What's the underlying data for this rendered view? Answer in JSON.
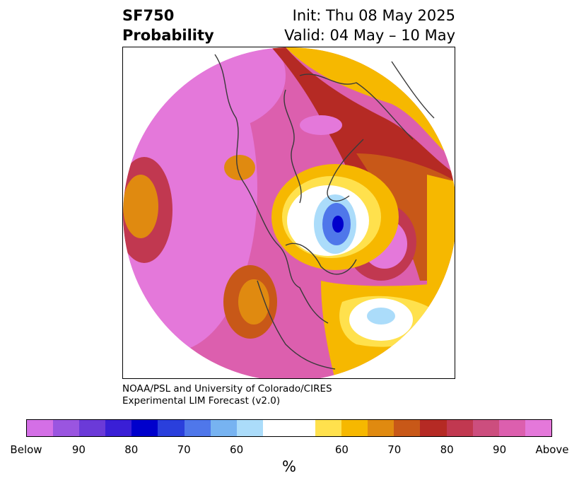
{
  "header": {
    "variable": "SF750",
    "product": "Probability",
    "init": "Init: Thu 08 May 2025",
    "valid": "Valid: 04 May – 10 May"
  },
  "credit": {
    "line1": "NOAA/PSL and University of Colorado/CIRES",
    "line2": "Experimental LIM Forecast (v2.0)"
  },
  "colorbar": {
    "colors": [
      "#d46fe6",
      "#9a55e0",
      "#6b3ad8",
      "#3a1fd6",
      "#0000cc",
      "#2a3fdc",
      "#4f77ea",
      "#77b3f1",
      "#abdcfa",
      "#ffffff",
      "#ffffff",
      "#ffe14d",
      "#f6b800",
      "#e08a10",
      "#c85818",
      "#b52a24",
      "#c13850",
      "#cc4e7e",
      "#dc5fae",
      "#e478da"
    ],
    "ticks": [
      "Below",
      "90",
      "80",
      "70",
      "60",
      "60",
      "70",
      "80",
      "90",
      "Above"
    ],
    "unit": "%"
  }
}
